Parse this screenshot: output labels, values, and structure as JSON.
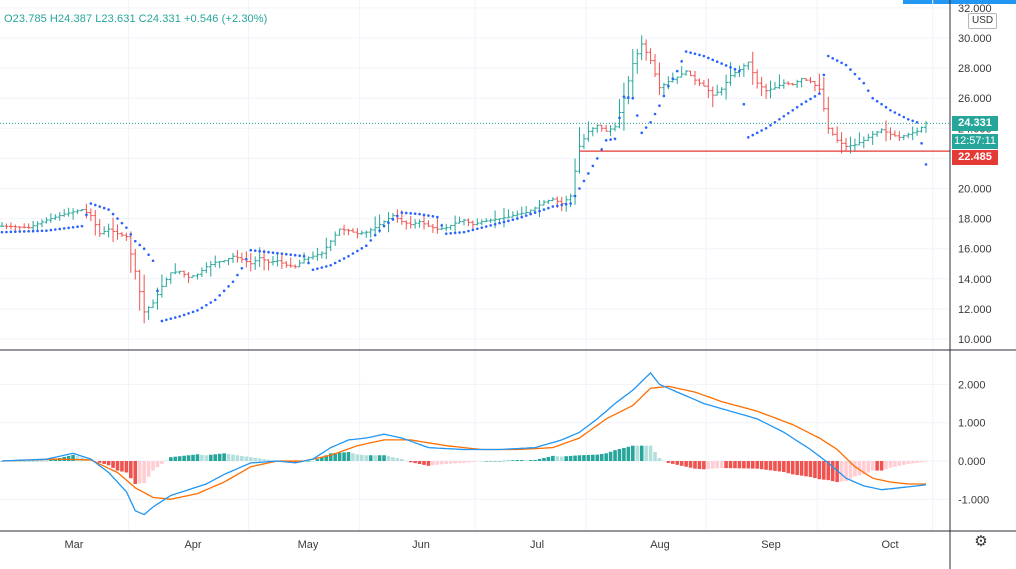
{
  "legend": {
    "open": "O23.785",
    "high": "H24.387",
    "low": "L23.631",
    "close": "C24.331",
    "change": "+0.546 (+2.30%)"
  },
  "currency": "USD",
  "labels": {
    "last_price": "24.331",
    "countdown": "12:57:11",
    "line_price": "22.485"
  },
  "colors": {
    "up": "#26a69a",
    "down": "#ef5350",
    "sar": "#2962ff",
    "macd": "#2196f3",
    "signal": "#ff6d00",
    "hline": "#e53935",
    "hist_up_strong": "#26a69a",
    "hist_up_weak": "#b2dfdb",
    "hist_down_strong": "#ef5350",
    "hist_down_weak": "#ffcdd2"
  },
  "icons": {
    "settings": "gear-icon"
  },
  "chart_data": [
    {
      "type": "ohlc",
      "title": "",
      "y_ticks": [
        "10.000",
        "12.000",
        "14.000",
        "16.000",
        "18.000",
        "20.000",
        "22.000",
        "24.000",
        "26.000",
        "28.000",
        "30.000",
        "32.000"
      ],
      "ylim": [
        10,
        32
      ],
      "x_ticks": [
        "Mar",
        "Apr",
        "May",
        "Jun",
        "Jul",
        "Aug",
        "Sep",
        "Oct"
      ],
      "last": 24.331,
      "horizontal_line": 22.485,
      "close_path": [
        [
          0,
          17.5
        ],
        [
          6,
          17.4
        ],
        [
          10,
          17.9
        ],
        [
          14,
          18.3
        ],
        [
          18,
          18.6
        ],
        [
          20,
          18.2
        ],
        [
          22,
          17.0
        ],
        [
          24,
          17.3
        ],
        [
          26,
          17.0
        ],
        [
          28,
          16.8
        ],
        [
          30,
          14.5
        ],
        [
          32,
          11.8
        ],
        [
          34,
          12.4
        ],
        [
          36,
          13.5
        ],
        [
          38,
          14.4
        ],
        [
          40,
          14.5
        ],
        [
          42,
          14.1
        ],
        [
          44,
          14.3
        ],
        [
          46,
          14.8
        ],
        [
          48,
          15.1
        ],
        [
          50,
          15.2
        ],
        [
          52,
          15.5
        ],
        [
          54,
          15.3
        ],
        [
          56,
          15.0
        ],
        [
          58,
          15.4
        ],
        [
          60,
          15.1
        ],
        [
          62,
          15.2
        ],
        [
          64,
          14.9
        ],
        [
          66,
          14.8
        ],
        [
          68,
          15.3
        ],
        [
          70,
          15.5
        ],
        [
          72,
          15.7
        ],
        [
          74,
          16.5
        ],
        [
          76,
          17.3
        ],
        [
          78,
          17.2
        ],
        [
          80,
          17.0
        ],
        [
          82,
          17.1
        ],
        [
          84,
          17.4
        ],
        [
          86,
          17.8
        ],
        [
          88,
          18.2
        ],
        [
          90,
          17.8
        ],
        [
          92,
          17.6
        ],
        [
          94,
          17.8
        ],
        [
          96,
          17.5
        ],
        [
          98,
          17.3
        ],
        [
          100,
          17.4
        ],
        [
          102,
          17.7
        ],
        [
          104,
          17.9
        ],
        [
          106,
          17.6
        ],
        [
          108,
          17.8
        ],
        [
          110,
          17.9
        ],
        [
          112,
          18.0
        ],
        [
          114,
          18.1
        ],
        [
          116,
          18.3
        ],
        [
          118,
          18.4
        ],
        [
          120,
          18.7
        ],
        [
          122,
          19.1
        ],
        [
          124,
          19.3
        ],
        [
          126,
          19.0
        ],
        [
          128,
          19.5
        ],
        [
          130,
          22.8
        ],
        [
          132,
          23.8
        ],
        [
          134,
          24.2
        ],
        [
          136,
          23.8
        ],
        [
          138,
          24.1
        ],
        [
          140,
          26.0
        ],
        [
          142,
          28.3
        ],
        [
          144,
          29.6
        ],
        [
          146,
          28.5
        ],
        [
          148,
          26.7
        ],
        [
          150,
          27.1
        ],
        [
          152,
          27.4
        ],
        [
          154,
          27.8
        ],
        [
          156,
          27.2
        ],
        [
          158,
          26.8
        ],
        [
          160,
          26.2
        ],
        [
          162,
          26.6
        ],
        [
          164,
          27.5
        ],
        [
          166,
          27.9
        ],
        [
          168,
          28.4
        ],
        [
          170,
          27.0
        ],
        [
          172,
          26.5
        ],
        [
          174,
          26.7
        ],
        [
          176,
          27.0
        ],
        [
          178,
          26.9
        ],
        [
          180,
          27.3
        ],
        [
          182,
          27.1
        ],
        [
          184,
          26.6
        ],
        [
          186,
          24.0
        ],
        [
          188,
          23.2
        ],
        [
          190,
          22.8
        ],
        [
          192,
          22.9
        ],
        [
          194,
          23.2
        ],
        [
          196,
          23.6
        ],
        [
          198,
          23.9
        ],
        [
          200,
          23.6
        ],
        [
          202,
          23.4
        ],
        [
          204,
          23.6
        ],
        [
          206,
          23.8
        ],
        [
          208,
          24.331
        ]
      ],
      "sar": [
        [
          0,
          17.1
        ],
        [
          10,
          17.2
        ],
        [
          18,
          17.5
        ],
        [
          20,
          19.0
        ],
        [
          24,
          18.6
        ],
        [
          28,
          17.4
        ],
        [
          30,
          16.5
        ],
        [
          32,
          16.0
        ],
        [
          34,
          15.2
        ],
        [
          36,
          11.2
        ],
        [
          40,
          11.5
        ],
        [
          44,
          11.9
        ],
        [
          48,
          12.6
        ],
        [
          52,
          13.8
        ],
        [
          54,
          14.7
        ],
        [
          56,
          15.9
        ],
        [
          62,
          15.7
        ],
        [
          68,
          15.5
        ],
        [
          70,
          14.6
        ],
        [
          74,
          14.9
        ],
        [
          78,
          15.5
        ],
        [
          82,
          16.2
        ],
        [
          84,
          16.9
        ],
        [
          86,
          17.5
        ],
        [
          90,
          18.4
        ],
        [
          94,
          18.3
        ],
        [
          98,
          18.1
        ],
        [
          100,
          17.0
        ],
        [
          104,
          17.1
        ],
        [
          108,
          17.4
        ],
        [
          112,
          17.7
        ],
        [
          116,
          18.0
        ],
        [
          120,
          18.4
        ],
        [
          124,
          18.8
        ],
        [
          128,
          19.0
        ],
        [
          130,
          20.0
        ],
        [
          132,
          21.0
        ],
        [
          134,
          22.0
        ],
        [
          136,
          23.2
        ],
        [
          138,
          23.3
        ],
        [
          140,
          26.1
        ],
        [
          142,
          26.0
        ],
        [
          144,
          23.7
        ],
        [
          146,
          24.4
        ],
        [
          148,
          25.5
        ],
        [
          150,
          26.8
        ],
        [
          152,
          27.8
        ],
        [
          154,
          29.1
        ],
        [
          158,
          28.8
        ],
        [
          162,
          28.3
        ],
        [
          166,
          27.8
        ],
        [
          168,
          23.4
        ],
        [
          172,
          24.0
        ],
        [
          176,
          24.8
        ],
        [
          180,
          25.6
        ],
        [
          184,
          26.3
        ],
        [
          186,
          28.8
        ],
        [
          190,
          28.2
        ],
        [
          194,
          27.0
        ],
        [
          196,
          26.0
        ],
        [
          200,
          25.2
        ],
        [
          204,
          24.6
        ],
        [
          206,
          24.4
        ],
        [
          208,
          21.6
        ]
      ]
    },
    {
      "type": "macd",
      "y_ticks": [
        "-1.000",
        "0.000",
        "1.000",
        "2.000"
      ],
      "ylim": [
        -1.5,
        2.5
      ],
      "macd": [
        [
          0,
          0.0
        ],
        [
          10,
          0.05
        ],
        [
          16,
          0.2
        ],
        [
          20,
          0.05
        ],
        [
          24,
          -0.3
        ],
        [
          28,
          -0.8
        ],
        [
          30,
          -1.3
        ],
        [
          32,
          -1.4
        ],
        [
          34,
          -1.2
        ],
        [
          38,
          -0.9
        ],
        [
          42,
          -0.75
        ],
        [
          46,
          -0.6
        ],
        [
          50,
          -0.35
        ],
        [
          56,
          -0.05
        ],
        [
          62,
          0.0
        ],
        [
          66,
          -0.05
        ],
        [
          70,
          0.05
        ],
        [
          74,
          0.35
        ],
        [
          78,
          0.55
        ],
        [
          82,
          0.6
        ],
        [
          86,
          0.7
        ],
        [
          90,
          0.6
        ],
        [
          96,
          0.35
        ],
        [
          104,
          0.3
        ],
        [
          112,
          0.3
        ],
        [
          120,
          0.35
        ],
        [
          126,
          0.55
        ],
        [
          130,
          0.75
        ],
        [
          134,
          1.1
        ],
        [
          138,
          1.5
        ],
        [
          142,
          1.85
        ],
        [
          146,
          2.3
        ],
        [
          148,
          2.0
        ],
        [
          152,
          1.8
        ],
        [
          158,
          1.5
        ],
        [
          164,
          1.3
        ],
        [
          170,
          1.1
        ],
        [
          176,
          0.75
        ],
        [
          182,
          0.3
        ],
        [
          186,
          -0.05
        ],
        [
          190,
          -0.45
        ],
        [
          194,
          -0.65
        ],
        [
          198,
          -0.75
        ],
        [
          202,
          -0.7
        ],
        [
          206,
          -0.65
        ],
        [
          208,
          -0.62
        ]
      ],
      "signal": [
        [
          0,
          0.0
        ],
        [
          12,
          0.05
        ],
        [
          20,
          0.03
        ],
        [
          26,
          -0.3
        ],
        [
          30,
          -0.7
        ],
        [
          34,
          -0.95
        ],
        [
          38,
          -1.0
        ],
        [
          44,
          -0.85
        ],
        [
          50,
          -0.55
        ],
        [
          56,
          -0.15
        ],
        [
          62,
          0.0
        ],
        [
          68,
          0.0
        ],
        [
          74,
          0.15
        ],
        [
          80,
          0.4
        ],
        [
          86,
          0.55
        ],
        [
          92,
          0.55
        ],
        [
          100,
          0.4
        ],
        [
          108,
          0.3
        ],
        [
          116,
          0.3
        ],
        [
          124,
          0.35
        ],
        [
          130,
          0.6
        ],
        [
          136,
          1.1
        ],
        [
          142,
          1.45
        ],
        [
          146,
          1.9
        ],
        [
          150,
          1.95
        ],
        [
          156,
          1.8
        ],
        [
          162,
          1.55
        ],
        [
          170,
          1.3
        ],
        [
          178,
          0.95
        ],
        [
          184,
          0.6
        ],
        [
          188,
          0.3
        ],
        [
          192,
          -0.15
        ],
        [
          196,
          -0.45
        ],
        [
          200,
          -0.55
        ],
        [
          204,
          -0.6
        ],
        [
          208,
          -0.6
        ]
      ]
    }
  ]
}
